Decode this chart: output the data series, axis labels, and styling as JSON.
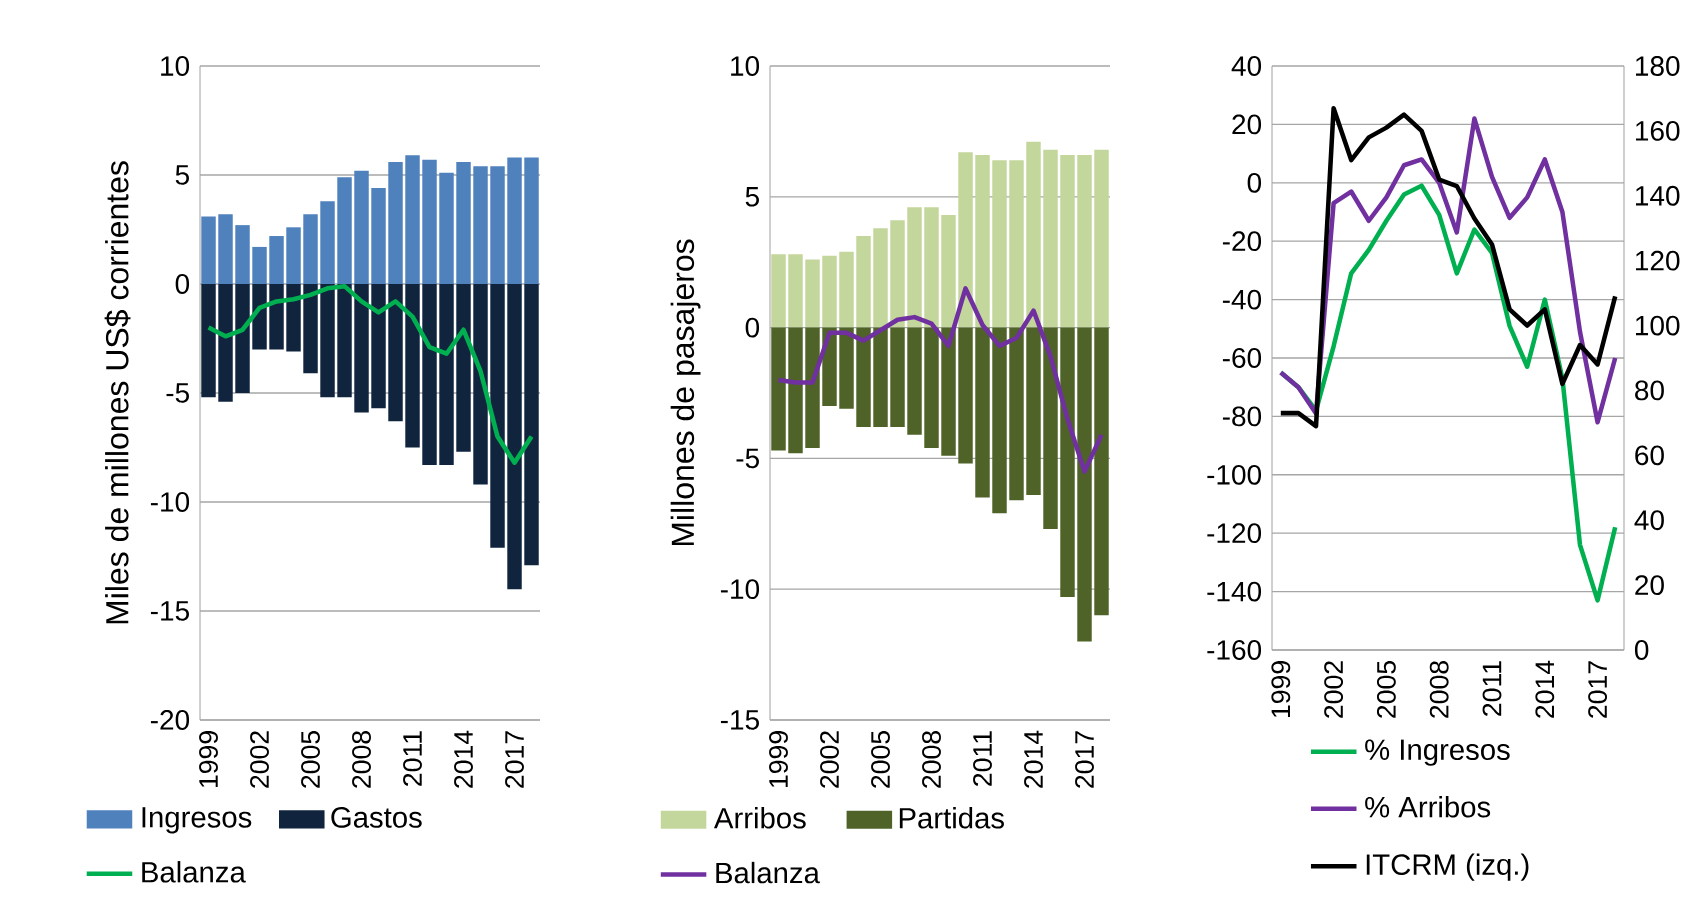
{
  "chart_data": [
    {
      "type": "bar",
      "ylabel": "Miles de millones US$ corrientes",
      "categories": [
        "1999",
        null,
        null,
        "2002",
        null,
        null,
        "2005",
        null,
        null,
        "2008",
        null,
        null,
        "2011",
        null,
        null,
        "2014",
        null,
        null,
        "2017",
        null
      ],
      "ylim": [
        -20,
        10
      ],
      "yticks": [
        -20,
        -15,
        -10,
        -5,
        0,
        5,
        10
      ],
      "grid": "y",
      "legend": "bottom",
      "stacked": true,
      "series": [
        {
          "name": "Ingresos",
          "color": "#4f81bd",
          "values": [
            3.1,
            3.2,
            2.7,
            1.7,
            2.2,
            2.6,
            3.2,
            3.8,
            4.9,
            5.2,
            4.4,
            5.6,
            5.9,
            5.7,
            5.1,
            5.6,
            5.4,
            5.4,
            5.8,
            5.8
          ]
        },
        {
          "name": "Gastos",
          "color": "#10243e",
          "values": [
            -5.2,
            -5.4,
            -5.0,
            -3.0,
            -3.0,
            -3.1,
            -4.1,
            -5.2,
            -5.2,
            -5.9,
            -5.7,
            -6.3,
            -7.5,
            -8.3,
            -8.3,
            -7.7,
            -9.2,
            -12.1,
            -14.0,
            -12.9
          ]
        },
        {
          "name": "Balanza",
          "type": "line",
          "color": "#00b050",
          "values": [
            -2.0,
            -2.4,
            -2.1,
            -1.1,
            -0.8,
            -0.7,
            -0.5,
            -0.2,
            -0.1,
            -0.8,
            -1.3,
            -0.8,
            -1.5,
            -2.9,
            -3.2,
            -2.1,
            -4.0,
            -7.0,
            -8.2,
            -7.0
          ]
        }
      ]
    },
    {
      "type": "bar",
      "ylabel": "Millones de pasajeros",
      "categories": [
        "1999",
        null,
        null,
        "2002",
        null,
        null,
        "2005",
        null,
        null,
        "2008",
        null,
        null,
        "2011",
        null,
        null,
        "2014",
        null,
        null,
        "2017",
        null
      ],
      "ylim": [
        -15,
        10
      ],
      "yticks": [
        -15,
        -10,
        -5,
        0,
        5,
        10
      ],
      "grid": "y",
      "legend": "bottom",
      "stacked": true,
      "series": [
        {
          "name": "Arribos",
          "color": "#c3d69b",
          "values": [
            2.8,
            2.8,
            2.6,
            2.75,
            2.9,
            3.5,
            3.8,
            4.1,
            4.6,
            4.6,
            4.3,
            6.7,
            6.6,
            6.4,
            6.4,
            7.1,
            6.8,
            6.6,
            6.6,
            6.8
          ]
        },
        {
          "name": "Partidas",
          "color": "#4f6228",
          "values": [
            -4.7,
            -4.8,
            -4.6,
            -3.0,
            -3.1,
            -3.8,
            -3.8,
            -3.8,
            -4.1,
            -4.6,
            -4.9,
            -5.2,
            -6.5,
            -7.1,
            -6.6,
            -6.4,
            -7.7,
            -10.3,
            -12.0,
            -11.0
          ]
        },
        {
          "name": "Balanza",
          "type": "line",
          "color": "#7030a0",
          "values": [
            -2.0,
            -2.1,
            -2.1,
            -0.2,
            -0.2,
            -0.5,
            -0.1,
            0.3,
            0.4,
            0.15,
            -0.7,
            1.5,
            0.1,
            -0.7,
            -0.4,
            0.65,
            -1.1,
            -3.5,
            -5.5,
            -4.1
          ]
        }
      ]
    },
    {
      "type": "line",
      "categories": [
        "1999",
        null,
        null,
        "2002",
        null,
        null,
        "2005",
        null,
        null,
        "2008",
        null,
        null,
        "2011",
        null,
        null,
        "2014",
        null,
        null,
        "2017",
        null
      ],
      "ylim": [
        -160,
        40
      ],
      "yticks": [
        -160,
        -140,
        -120,
        -100,
        -80,
        -60,
        -40,
        -20,
        0,
        20,
        40
      ],
      "y2lim": [
        0,
        180
      ],
      "y2ticks": [
        0,
        20,
        40,
        60,
        80,
        100,
        120,
        140,
        160,
        180
      ],
      "grid": "y",
      "legend": "bottom",
      "series": [
        {
          "name": "% Ingresos",
          "color": "#00b050",
          "values": [
            -65,
            -70,
            -78,
            -56,
            -31,
            -23,
            -13,
            -4,
            -1,
            -11,
            -31,
            -16,
            -24,
            -49,
            -63,
            -40,
            -67,
            -124,
            -143,
            -118
          ]
        },
        {
          "name": "% Arribos",
          "color": "#7030a0",
          "values": [
            -65,
            -70,
            -79,
            -7,
            -3,
            -13,
            -5,
            6,
            8,
            0,
            -17,
            22,
            2,
            -12,
            -5,
            8,
            -10,
            -51,
            -82,
            -60
          ]
        },
        {
          "name": "ITCRM (izq.)",
          "axis": "y2",
          "color": "#000000",
          "values": [
            73,
            73,
            69,
            167,
            151,
            158,
            161,
            165,
            160,
            145,
            143,
            133,
            125,
            105,
            100,
            105,
            82,
            94,
            88,
            109
          ]
        }
      ]
    }
  ]
}
